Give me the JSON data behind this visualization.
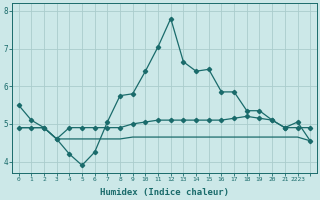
{
  "xlabel": "Humidex (Indice chaleur)",
  "ylabel": "",
  "background_color": "#cce8e8",
  "grid_color": "#aacccc",
  "line_color": "#1a6b6b",
  "x_values": [
    0,
    1,
    2,
    3,
    4,
    5,
    6,
    7,
    8,
    9,
    10,
    11,
    12,
    13,
    14,
    15,
    16,
    17,
    18,
    19,
    20,
    21,
    22,
    23
  ],
  "line1": [
    5.5,
    5.1,
    4.9,
    4.6,
    4.2,
    3.9,
    4.25,
    5.05,
    5.75,
    5.8,
    6.4,
    7.05,
    7.8,
    6.65,
    6.4,
    6.45,
    5.85,
    5.85,
    5.35,
    5.35,
    5.1,
    4.9,
    5.05,
    4.55
  ],
  "line2": [
    4.9,
    4.9,
    4.9,
    4.6,
    4.9,
    4.9,
    4.9,
    4.9,
    4.9,
    5.0,
    5.05,
    5.1,
    5.1,
    5.1,
    5.1,
    5.1,
    5.1,
    5.15,
    5.2,
    5.15,
    5.1,
    4.9,
    4.9,
    4.9
  ],
  "line3": [
    4.9,
    4.9,
    4.9,
    4.6,
    4.6,
    4.6,
    4.6,
    4.6,
    4.6,
    4.65,
    4.65,
    4.65,
    4.65,
    4.65,
    4.65,
    4.65,
    4.65,
    4.65,
    4.65,
    4.65,
    4.65,
    4.65,
    4.65,
    4.55
  ],
  "ylim": [
    3.7,
    8.2
  ],
  "xlim": [
    -0.5,
    23.5
  ],
  "yticks": [
    4,
    5,
    6,
    7,
    8
  ],
  "xticks": [
    0,
    1,
    2,
    3,
    4,
    5,
    6,
    7,
    8,
    9,
    10,
    11,
    12,
    13,
    14,
    15,
    16,
    17,
    18,
    19,
    20,
    21,
    22,
    23
  ],
  "xtick_labels": [
    "0",
    "1",
    "2",
    "3",
    "4",
    "5",
    "6",
    "7",
    "8",
    "9",
    "10",
    "11",
    "12",
    "13",
    "14",
    "15",
    "16",
    "17",
    "18",
    "19",
    "20",
    "21",
    "2223",
    ""
  ],
  "figwidth": 3.2,
  "figheight": 2.0,
  "dpi": 100
}
